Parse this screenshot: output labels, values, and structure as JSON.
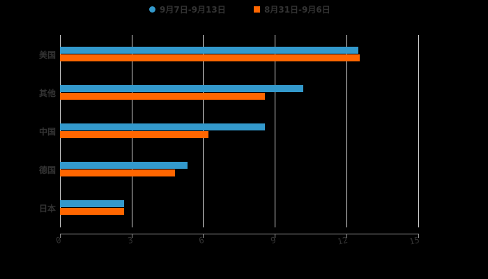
{
  "chart_data": {
    "type": "bar",
    "orientation": "horizontal",
    "title": "",
    "categories": [
      "美国",
      "其他",
      "中国",
      "德国",
      "日本"
    ],
    "series": [
      {
        "name": "9月7日-9月13日",
        "color": "#3399cc",
        "values": [
          12.49,
          10.18,
          8.58,
          5.34,
          2.68
        ]
      },
      {
        "name": "8月31日-9月6日",
        "color": "#ff6600",
        "values": [
          12.55,
          8.58,
          6.22,
          4.81,
          2.68
        ]
      }
    ],
    "xlabel": "",
    "ylabel": "",
    "xlim": [
      0,
      15
    ],
    "xticks": [
      "0",
      "3",
      "6",
      "9",
      "12",
      "15"
    ],
    "grid": true,
    "legend_position": "top"
  },
  "legend": {
    "items": [
      {
        "label": "9月7日-9月13日",
        "color": "#3399cc",
        "marker": "circle"
      },
      {
        "label": "8月31日-9月6日",
        "color": "#ff6600",
        "marker": "square"
      }
    ]
  },
  "axis": {
    "ticks": [
      "0",
      "3",
      "6",
      "9",
      "12",
      "15"
    ]
  },
  "categories": [
    "美国",
    "其他",
    "中国",
    "德国",
    "日本"
  ]
}
